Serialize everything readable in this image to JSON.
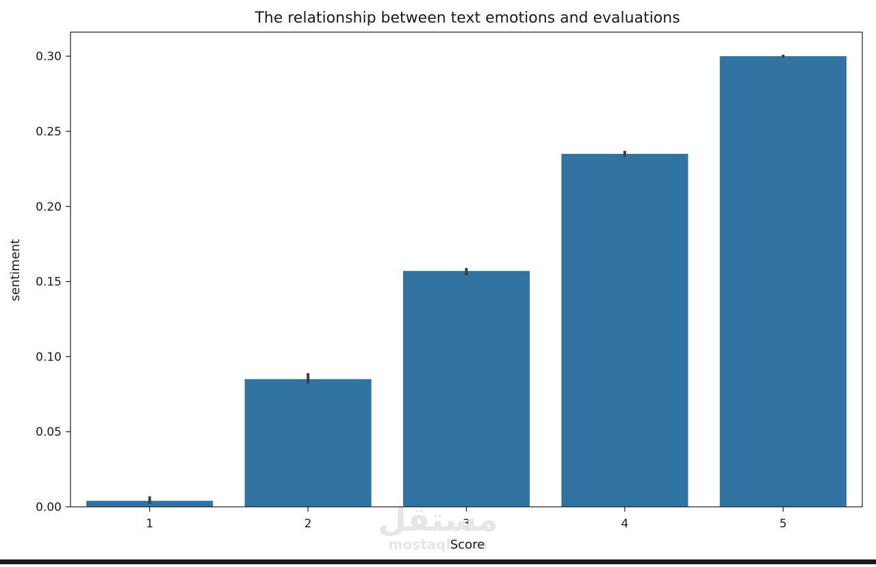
{
  "chart_data": {
    "type": "bar",
    "title": "The relationship between text emotions and evaluations",
    "xlabel": "Score",
    "ylabel": "sentiment",
    "categories": [
      "1",
      "2",
      "3",
      "4",
      "5"
    ],
    "values": [
      0.004,
      0.085,
      0.157,
      0.235,
      0.3
    ],
    "error_bars": [
      [
        0.002,
        0.007
      ],
      [
        0.082,
        0.089
      ],
      [
        0.154,
        0.159
      ],
      [
        0.233,
        0.237
      ],
      [
        0.299,
        0.301
      ]
    ],
    "ylim": [
      0,
      0.316
    ],
    "yticks": [
      "0.00",
      "0.05",
      "0.10",
      "0.15",
      "0.20",
      "0.25",
      "0.30"
    ],
    "ytick_values": [
      0,
      0.05,
      0.1,
      0.15,
      0.2,
      0.25,
      0.3
    ],
    "bar_color": "#3274a1",
    "errorbar_color": "#3f3f3f",
    "grid": false
  },
  "watermark": {
    "arabic": "مستقل",
    "latin": "mostaql.com"
  }
}
